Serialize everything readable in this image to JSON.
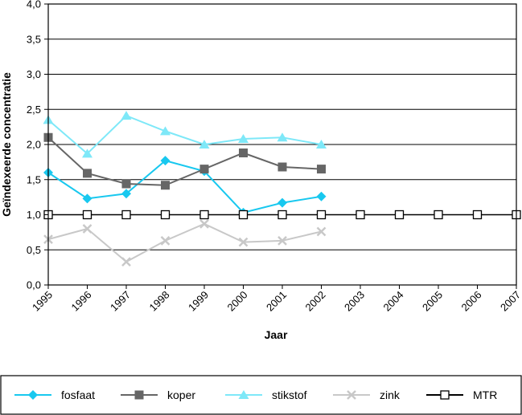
{
  "chart_data": {
    "type": "line",
    "xlabel": "Jaar",
    "ylabel": "Geïndexeerde concentratie",
    "x": [
      "1995",
      "1996",
      "1997",
      "1998",
      "1999",
      "2000",
      "2001",
      "2002",
      "2003",
      "2004",
      "2005",
      "2006",
      "2007"
    ],
    "yticks": [
      "0,0",
      "0,5",
      "1,0",
      "1,5",
      "2,0",
      "2,5",
      "3,0",
      "3,5",
      "4,0"
    ],
    "ylim": [
      0,
      4
    ],
    "grid": "horizontal",
    "legend_position": "bottom",
    "series": [
      {
        "name": "fosfaat",
        "color": "#18c8ef",
        "marker": "diamond",
        "values": [
          1.6,
          1.23,
          1.3,
          1.77,
          1.62,
          1.03,
          1.17,
          1.26,
          null,
          null,
          null,
          null,
          null
        ]
      },
      {
        "name": "koper",
        "color": "#666666",
        "marker": "square",
        "values": [
          2.1,
          1.59,
          1.44,
          1.42,
          1.65,
          1.88,
          1.68,
          1.65,
          null,
          null,
          null,
          null,
          null
        ]
      },
      {
        "name": "stikstof",
        "color": "#7ee8f8",
        "marker": "triangle",
        "values": [
          2.35,
          1.87,
          2.41,
          2.19,
          2.0,
          2.08,
          2.1,
          2.0,
          null,
          null,
          null,
          null,
          null
        ]
      },
      {
        "name": "zink",
        "color": "#c8c8c8",
        "marker": "x",
        "values": [
          0.65,
          0.8,
          0.33,
          0.63,
          0.87,
          0.61,
          0.63,
          0.76,
          null,
          null,
          null,
          null,
          null
        ]
      },
      {
        "name": "MTR",
        "color": "#000000",
        "marker": "open-square",
        "values": [
          1.0,
          1.0,
          1.0,
          1.0,
          1.0,
          1.0,
          1.0,
          1.0,
          1.0,
          1.0,
          1.0,
          1.0,
          1.0
        ]
      }
    ]
  }
}
